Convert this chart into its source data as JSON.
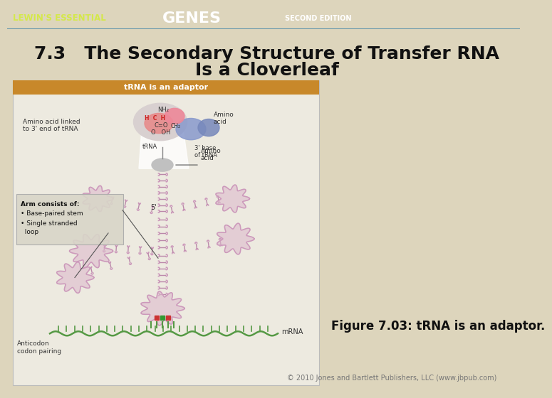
{
  "header_bg": "#5b9ab5",
  "header_text_lewin": "LEWIN'S ESSENTIAL",
  "header_text_genes": "GENES",
  "header_text_edition": "SECOND EDITION",
  "header_lewin_color": "#d4e84a",
  "header_genes_color": "#ffffff",
  "header_edition_color": "#ffffff",
  "body_bg": "#ddd5bc",
  "title_line1": "7.3   The Secondary Structure of Transfer RNA",
  "title_line2": "Is a Cloverleaf",
  "title_color": "#111111",
  "title_fontsize": 18,
  "figure_caption": "Figure 7.03: tRNA is an adaptor.",
  "caption_fontsize": 12,
  "copyright_text": "© 2010 Jones and Bartlett Publishers, LLC (www.jbpub.com)",
  "copyright_fontsize": 7,
  "image_box_bg": "#edeae0",
  "image_box_header_bg": "#c8882a",
  "image_box_header_text": "tRNA is an adaptor",
  "stem_color1": "#cc99bb",
  "stem_color2": "#bb88aa",
  "loop_color": "#cc99bb",
  "loop_fill": "#ddbbcc",
  "mrna_color": "#559944",
  "anticodon_colors": [
    "#cc3333",
    "#339933",
    "#cc3333"
  ]
}
